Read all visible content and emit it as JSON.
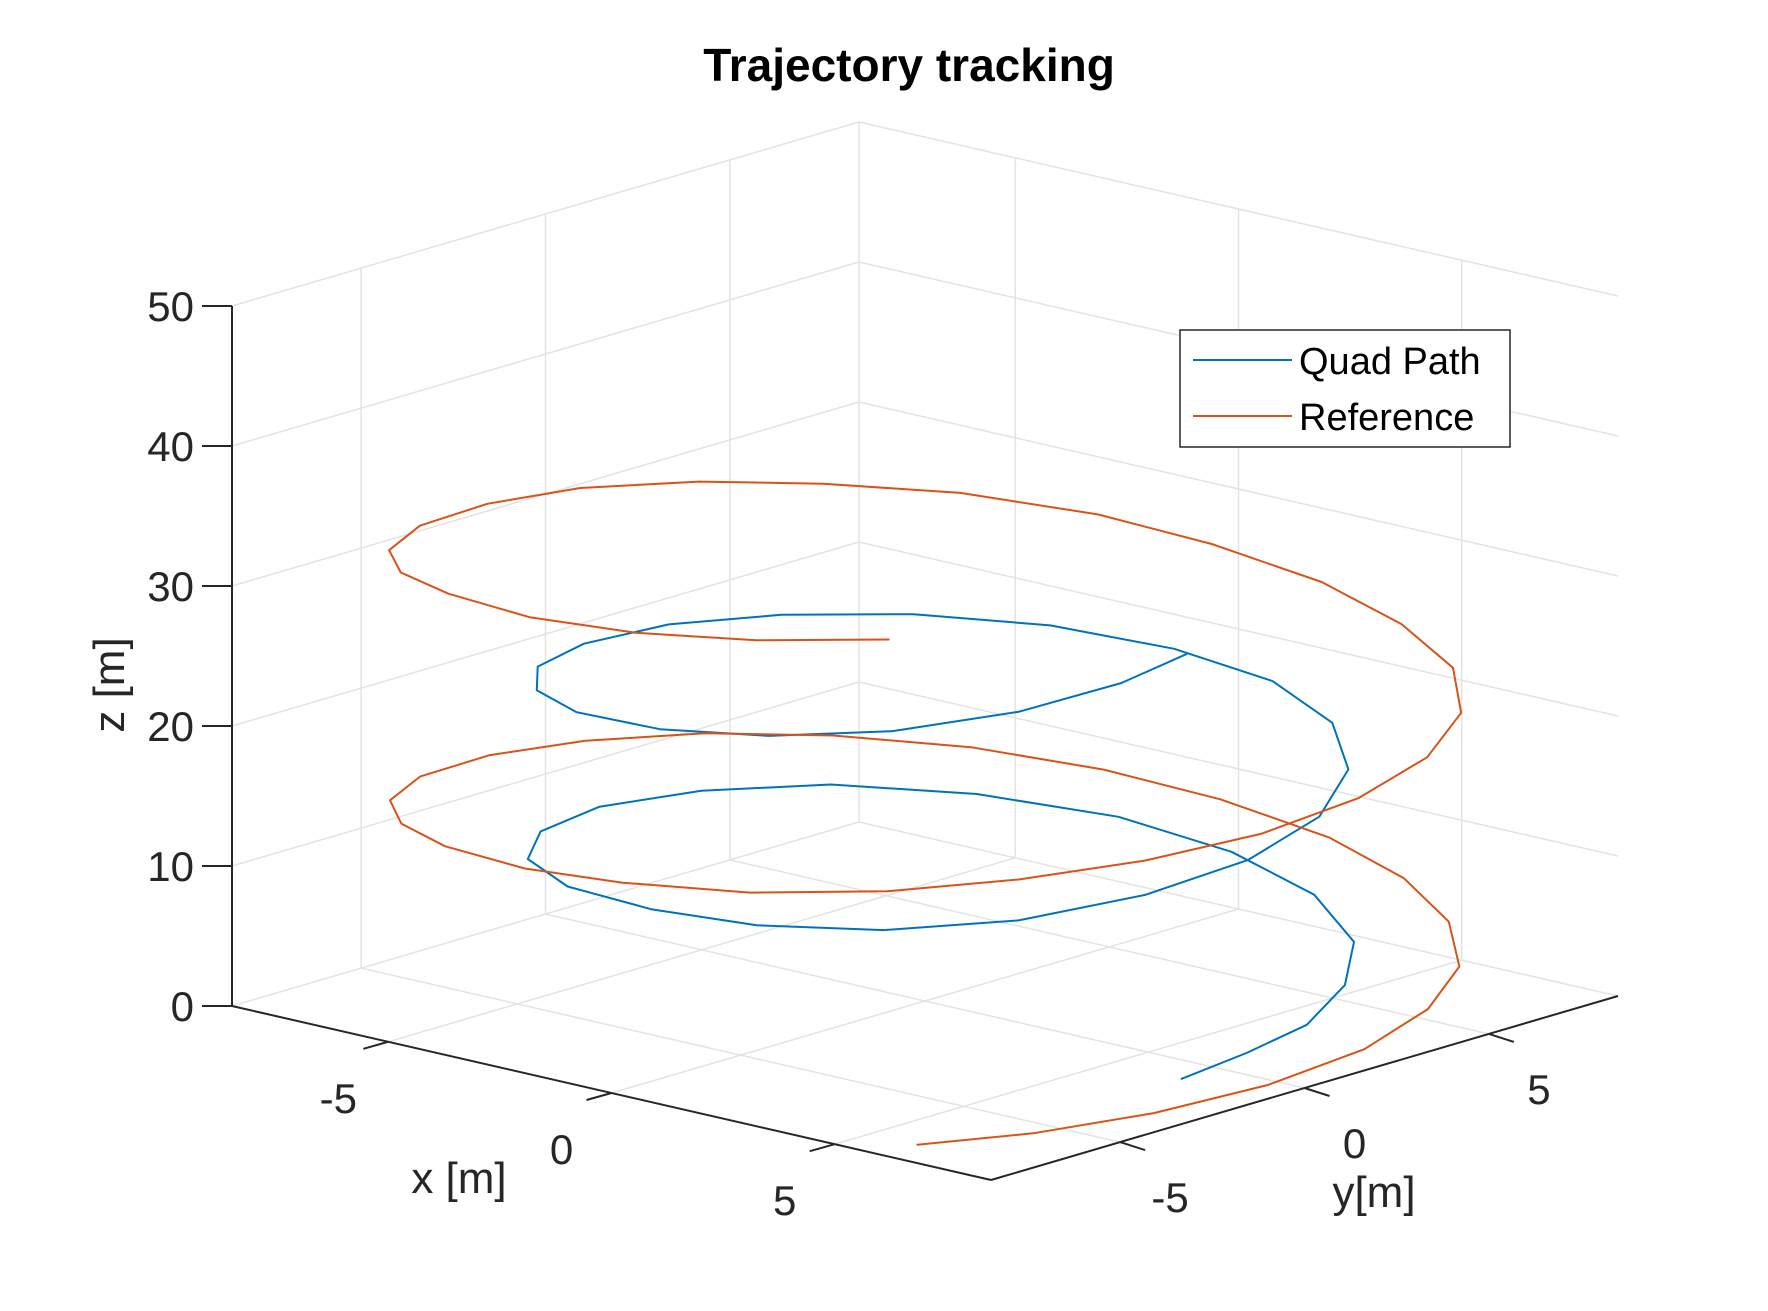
{
  "chart_data": {
    "type": "line3d",
    "title": "Trajectory tracking",
    "xlabel": "x [m]",
    "ylabel": "y[m]",
    "zlabel": "z [m]",
    "xlim": [
      -8.5,
      8.5
    ],
    "ylim": [
      -8.5,
      8.5
    ],
    "zlim": [
      0,
      50
    ],
    "xticks": [
      -5,
      0,
      5
    ],
    "yticks": [
      -5,
      0,
      5
    ],
    "zticks": [
      0,
      10,
      20,
      30,
      40,
      50
    ],
    "xtick_labels": [
      "-5",
      "0",
      "5"
    ],
    "ytick_labels": [
      "-5",
      "0",
      "5"
    ],
    "ztick_labels": [
      "0",
      "10",
      "20",
      "30",
      "40",
      "50"
    ],
    "grid": true,
    "box": false,
    "legend_position": "top-right",
    "series": [
      {
        "name": "Quad Path",
        "color": "#0072BD",
        "points": [
          [
            7.4,
            -2.0,
            1.4
          ],
          [
            7.2,
            0.0,
            1.55
          ],
          [
            6.9,
            2.0,
            1.8
          ],
          [
            6.1,
            4.0,
            2.5
          ],
          [
            4.9,
            5.7,
            3.4
          ],
          [
            3.1,
            6.8,
            4.6
          ],
          [
            1.0,
            7.1,
            5.9
          ],
          [
            -1.2,
            6.7,
            7.1
          ],
          [
            -3.3,
            5.4,
            8.2
          ],
          [
            -5.0,
            3.5,
            9.1
          ],
          [
            -6.0,
            1.2,
            9.7
          ],
          [
            -6.3,
            -1.2,
            10.2
          ],
          [
            -5.8,
            -3.4,
            10.5
          ],
          [
            -4.6,
            -5.2,
            10.8
          ],
          [
            -2.8,
            -6.3,
            11.0
          ],
          [
            -0.6,
            -6.7,
            11.3
          ],
          [
            1.6,
            -6.5,
            11.6
          ],
          [
            3.7,
            -5.6,
            12.1
          ],
          [
            5.4,
            -4.0,
            12.8
          ],
          [
            6.5,
            -1.9,
            13.8
          ],
          [
            6.9,
            0.4,
            14.8
          ],
          [
            6.6,
            2.7,
            15.9
          ],
          [
            5.6,
            4.7,
            17.0
          ],
          [
            4.0,
            6.2,
            18.0
          ],
          [
            2.0,
            7.0,
            18.9
          ],
          [
            -0.2,
            7.0,
            19.6
          ],
          [
            -2.4,
            6.3,
            20.2
          ],
          [
            -4.3,
            4.9,
            20.7
          ],
          [
            -5.7,
            3.0,
            21.1
          ],
          [
            -6.4,
            0.8,
            21.6
          ],
          [
            -6.4,
            -1.5,
            22.0
          ],
          [
            -5.7,
            -3.6,
            22.5
          ],
          [
            -4.4,
            -5.2,
            23.0
          ],
          [
            -2.6,
            -6.3,
            23.6
          ],
          [
            -0.4,
            -6.7,
            24.3
          ],
          [
            1.8,
            -6.4,
            25.2
          ],
          [
            3.8,
            -5.5,
            26.3
          ],
          [
            5.4,
            -4.0,
            27.7
          ],
          [
            6.3,
            -2.3,
            29.1
          ],
          [
            6.6,
            -0.9,
            30.3
          ]
        ]
      },
      {
        "name": "Reference",
        "color": "#D95319",
        "points": [
          [
            5.76,
            -7.18,
            -0.5
          ],
          [
            7.18,
            -5.76,
            0.25
          ],
          [
            8.28,
            -3.82,
            1.0
          ],
          [
            8.96,
            -1.54,
            1.75
          ],
          [
            9.09,
            0.91,
            2.5
          ],
          [
            8.62,
            3.2,
            3.25
          ],
          [
            7.64,
            5.24,
            4.0
          ],
          [
            6.04,
            6.89,
            4.75
          ],
          [
            4.06,
            8.07,
            5.5
          ],
          [
            1.82,
            8.75,
            6.25
          ],
          [
            -0.73,
            8.89,
            7.0
          ],
          [
            -3.02,
            8.5,
            7.75
          ],
          [
            -5.2,
            7.54,
            8.5
          ],
          [
            -6.98,
            5.96,
            9.25
          ],
          [
            -8.25,
            4.01,
            10.0
          ],
          [
            -8.97,
            1.65,
            10.75
          ],
          [
            -9.11,
            -0.77,
            11.5
          ],
          [
            -8.62,
            -3.25,
            12.25
          ],
          [
            -7.53,
            -5.39,
            13.0
          ],
          [
            -5.94,
            -7.01,
            13.75
          ],
          [
            -3.97,
            -8.21,
            14.5
          ],
          [
            -1.56,
            -8.96,
            15.25
          ],
          [
            0.73,
            -9.08,
            16.0
          ],
          [
            3.2,
            -8.62,
            16.75
          ],
          [
            5.32,
            -7.47,
            17.5
          ],
          [
            6.92,
            -5.84,
            18.25
          ],
          [
            8.15,
            -3.89,
            19.0
          ],
          [
            8.91,
            -1.65,
            19.75
          ],
          [
            9.05,
            0.81,
            20.5
          ],
          [
            8.62,
            3.18,
            21.25
          ],
          [
            7.59,
            5.35,
            22.0
          ],
          [
            6.01,
            7.04,
            22.75
          ],
          [
            3.94,
            8.15,
            23.5
          ],
          [
            1.58,
            8.84,
            24.25
          ],
          [
            -0.98,
            8.96,
            25.0
          ],
          [
            -3.22,
            8.6,
            25.75
          ],
          [
            -5.43,
            7.53,
            26.5
          ],
          [
            -7.1,
            5.83,
            27.25
          ],
          [
            -8.3,
            3.92,
            28.0
          ],
          [
            -9.07,
            1.63,
            28.75
          ],
          [
            -9.11,
            -0.84,
            29.5
          ],
          [
            -8.57,
            -3.32,
            30.25
          ],
          [
            -7.46,
            -5.5,
            31.0
          ],
          [
            -5.91,
            -7.06,
            31.75
          ],
          [
            -3.95,
            -8.14,
            32.5
          ],
          [
            -1.47,
            -8.94,
            33.25
          ],
          [
            0.98,
            -9.03,
            34.0
          ],
          [
            3.27,
            -8.53,
            34.75
          ],
          [
            5.35,
            -7.46,
            35.5
          ]
        ]
      }
    ]
  }
}
